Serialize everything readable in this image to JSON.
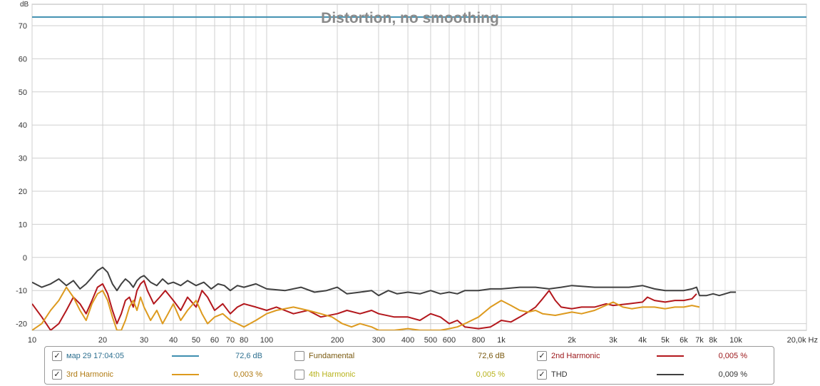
{
  "chart_data": {
    "type": "line",
    "title": "Distortion, no smoothing",
    "ylabel": "dB",
    "xlabel": "Hz",
    "x_scale": "log",
    "xlim": [
      10,
      20000
    ],
    "ylim": [
      -22,
      75
    ],
    "x_ticks": [
      {
        "v": 10,
        "label": "10"
      },
      {
        "v": 20,
        "label": "20"
      },
      {
        "v": 30,
        "label": "30"
      },
      {
        "v": 40,
        "label": "40"
      },
      {
        "v": 50,
        "label": "50"
      },
      {
        "v": 60,
        "label": "60"
      },
      {
        "v": 70,
        "label": "70"
      },
      {
        "v": 80,
        "label": "80"
      },
      {
        "v": 100,
        "label": "100"
      },
      {
        "v": 200,
        "label": "200"
      },
      {
        "v": 300,
        "label": "300"
      },
      {
        "v": 400,
        "label": "400"
      },
      {
        "v": 500,
        "label": "500"
      },
      {
        "v": 600,
        "label": "600"
      },
      {
        "v": 800,
        "label": "800"
      },
      {
        "v": 1000,
        "label": "1k"
      },
      {
        "v": 2000,
        "label": "2k"
      },
      {
        "v": 3000,
        "label": "3k"
      },
      {
        "v": 4000,
        "label": "4k"
      },
      {
        "v": 5000,
        "label": "5k"
      },
      {
        "v": 6000,
        "label": "6k"
      },
      {
        "v": 7000,
        "label": "7k"
      },
      {
        "v": 8000,
        "label": "8k"
      },
      {
        "v": 10000,
        "label": "10k"
      },
      {
        "v": 20000,
        "label": "20,0k Hz"
      }
    ],
    "x_minor": [
      90,
      700,
      900,
      9000
    ],
    "y_ticks": [
      70,
      60,
      50,
      40,
      30,
      20,
      10,
      0,
      -10,
      -20
    ],
    "grid": true,
    "series": [
      {
        "name": "Fundamental",
        "color": "#3f8fb0",
        "points": [
          [
            10,
            72.6
          ],
          [
            20000,
            72.6
          ]
        ]
      },
      {
        "name": "THD",
        "color": "#404040",
        "points": [
          [
            10,
            -7.5
          ],
          [
            11,
            -9
          ],
          [
            12,
            -8
          ],
          [
            13,
            -6.5
          ],
          [
            14,
            -8.5
          ],
          [
            15,
            -7
          ],
          [
            16,
            -9.5
          ],
          [
            17,
            -8
          ],
          [
            18,
            -6
          ],
          [
            19,
            -4
          ],
          [
            20,
            -3
          ],
          [
            21,
            -4.5
          ],
          [
            22,
            -8
          ],
          [
            23,
            -10
          ],
          [
            24,
            -8
          ],
          [
            25,
            -6.5
          ],
          [
            26,
            -7.5
          ],
          [
            27,
            -9
          ],
          [
            28,
            -7
          ],
          [
            29,
            -6
          ],
          [
            30,
            -5.5
          ],
          [
            32,
            -7.5
          ],
          [
            34,
            -8.5
          ],
          [
            36,
            -6.5
          ],
          [
            38,
            -8
          ],
          [
            40,
            -7.5
          ],
          [
            43,
            -8.5
          ],
          [
            46,
            -7
          ],
          [
            50,
            -8.5
          ],
          [
            54,
            -7.5
          ],
          [
            58,
            -9.5
          ],
          [
            62,
            -8
          ],
          [
            66,
            -8.5
          ],
          [
            70,
            -10
          ],
          [
            75,
            -8.5
          ],
          [
            80,
            -9
          ],
          [
            90,
            -8
          ],
          [
            100,
            -9.5
          ],
          [
            120,
            -10
          ],
          [
            140,
            -9
          ],
          [
            160,
            -10.5
          ],
          [
            180,
            -10
          ],
          [
            200,
            -9
          ],
          [
            220,
            -11
          ],
          [
            250,
            -10.5
          ],
          [
            280,
            -10
          ],
          [
            300,
            -11.5
          ],
          [
            330,
            -10
          ],
          [
            360,
            -11
          ],
          [
            400,
            -10.5
          ],
          [
            450,
            -11
          ],
          [
            500,
            -10
          ],
          [
            550,
            -11
          ],
          [
            600,
            -10.5
          ],
          [
            650,
            -11
          ],
          [
            700,
            -10
          ],
          [
            800,
            -10
          ],
          [
            900,
            -9.5
          ],
          [
            1000,
            -9.5
          ],
          [
            1200,
            -9
          ],
          [
            1400,
            -9
          ],
          [
            1600,
            -9.5
          ],
          [
            1800,
            -9
          ],
          [
            2000,
            -8.5
          ],
          [
            2500,
            -9
          ],
          [
            3000,
            -9
          ],
          [
            3500,
            -9
          ],
          [
            4000,
            -8.5
          ],
          [
            4500,
            -9.5
          ],
          [
            5000,
            -10
          ],
          [
            5500,
            -10
          ],
          [
            6000,
            -10
          ],
          [
            6500,
            -9.5
          ],
          [
            6800,
            -9
          ],
          [
            7000,
            -11.5
          ],
          [
            7500,
            -11.5
          ],
          [
            8000,
            -11
          ],
          [
            8500,
            -11.5
          ],
          [
            9000,
            -11
          ],
          [
            9500,
            -10.5
          ],
          [
            10000,
            -10.5
          ]
        ]
      },
      {
        "name": "2nd Harmonic",
        "color": "#b3171c",
        "points": [
          [
            10,
            -14
          ],
          [
            11,
            -18
          ],
          [
            12,
            -22
          ],
          [
            13,
            -20
          ],
          [
            14,
            -16
          ],
          [
            15,
            -12
          ],
          [
            16,
            -14
          ],
          [
            17,
            -17
          ],
          [
            18,
            -13
          ],
          [
            19,
            -9
          ],
          [
            20,
            -8
          ],
          [
            21,
            -11
          ],
          [
            22,
            -16
          ],
          [
            23,
            -20
          ],
          [
            24,
            -17
          ],
          [
            25,
            -13
          ],
          [
            26,
            -12
          ],
          [
            27,
            -15
          ],
          [
            28,
            -10
          ],
          [
            29,
            -8
          ],
          [
            30,
            -7
          ],
          [
            31,
            -10
          ],
          [
            33,
            -14
          ],
          [
            35,
            -12
          ],
          [
            37,
            -10
          ],
          [
            40,
            -13
          ],
          [
            43,
            -16
          ],
          [
            46,
            -12
          ],
          [
            50,
            -15
          ],
          [
            53,
            -10
          ],
          [
            56,
            -12
          ],
          [
            60,
            -16
          ],
          [
            65,
            -14
          ],
          [
            70,
            -17
          ],
          [
            75,
            -15
          ],
          [
            80,
            -14
          ],
          [
            90,
            -15
          ],
          [
            100,
            -16
          ],
          [
            110,
            -15
          ],
          [
            130,
            -17
          ],
          [
            150,
            -16
          ],
          [
            170,
            -18
          ],
          [
            200,
            -17
          ],
          [
            220,
            -16
          ],
          [
            250,
            -17
          ],
          [
            280,
            -16
          ],
          [
            300,
            -17
          ],
          [
            350,
            -18
          ],
          [
            400,
            -18
          ],
          [
            450,
            -19
          ],
          [
            500,
            -17
          ],
          [
            550,
            -18
          ],
          [
            600,
            -20
          ],
          [
            650,
            -19
          ],
          [
            700,
            -21
          ],
          [
            800,
            -21.5
          ],
          [
            900,
            -21
          ],
          [
            950,
            -20
          ],
          [
            1000,
            -19
          ],
          [
            1100,
            -19.5
          ],
          [
            1200,
            -18
          ],
          [
            1300,
            -16.5
          ],
          [
            1400,
            -15
          ],
          [
            1500,
            -12.5
          ],
          [
            1600,
            -10
          ],
          [
            1700,
            -13
          ],
          [
            1800,
            -15
          ],
          [
            2000,
            -15.5
          ],
          [
            2200,
            -15
          ],
          [
            2500,
            -15
          ],
          [
            2800,
            -14
          ],
          [
            3000,
            -14.5
          ],
          [
            3500,
            -14
          ],
          [
            4000,
            -13.5
          ],
          [
            4200,
            -12
          ],
          [
            4500,
            -13
          ],
          [
            5000,
            -13.5
          ],
          [
            5500,
            -13
          ],
          [
            6000,
            -13
          ],
          [
            6500,
            -12.5
          ],
          [
            6800,
            -11
          ]
        ]
      },
      {
        "name": "3rd Harmonic",
        "color": "#dd9a1e",
        "points": [
          [
            10,
            -22
          ],
          [
            11,
            -20
          ],
          [
            12,
            -16
          ],
          [
            13,
            -13
          ],
          [
            14,
            -9
          ],
          [
            15,
            -12
          ],
          [
            16,
            -16
          ],
          [
            17,
            -19
          ],
          [
            18,
            -14
          ],
          [
            19,
            -11
          ],
          [
            20,
            -10
          ],
          [
            21,
            -13
          ],
          [
            22,
            -18
          ],
          [
            23,
            -22
          ],
          [
            24,
            -22
          ],
          [
            25,
            -19
          ],
          [
            26,
            -15
          ],
          [
            27,
            -13
          ],
          [
            28,
            -16
          ],
          [
            29,
            -12
          ],
          [
            30,
            -15
          ],
          [
            32,
            -19
          ],
          [
            34,
            -16
          ],
          [
            36,
            -20
          ],
          [
            38,
            -17
          ],
          [
            40,
            -14
          ],
          [
            43,
            -19
          ],
          [
            46,
            -16
          ],
          [
            50,
            -13
          ],
          [
            53,
            -17
          ],
          [
            56,
            -20
          ],
          [
            60,
            -18
          ],
          [
            65,
            -17
          ],
          [
            70,
            -19
          ],
          [
            75,
            -20
          ],
          [
            80,
            -21
          ],
          [
            90,
            -19
          ],
          [
            100,
            -17
          ],
          [
            110,
            -16
          ],
          [
            130,
            -15
          ],
          [
            150,
            -16
          ],
          [
            170,
            -17
          ],
          [
            190,
            -18
          ],
          [
            210,
            -20
          ],
          [
            230,
            -21
          ],
          [
            250,
            -20
          ],
          [
            280,
            -21
          ],
          [
            300,
            -22
          ],
          [
            350,
            -22
          ],
          [
            400,
            -21.5
          ],
          [
            450,
            -22
          ],
          [
            500,
            -22
          ],
          [
            550,
            -22
          ],
          [
            600,
            -21.5
          ],
          [
            650,
            -21
          ],
          [
            700,
            -20
          ],
          [
            800,
            -18
          ],
          [
            900,
            -15
          ],
          [
            1000,
            -13
          ],
          [
            1100,
            -14.5
          ],
          [
            1200,
            -16
          ],
          [
            1300,
            -16.5
          ],
          [
            1400,
            -16
          ],
          [
            1500,
            -17
          ],
          [
            1700,
            -17.5
          ],
          [
            2000,
            -16.5
          ],
          [
            2200,
            -17
          ],
          [
            2500,
            -16
          ],
          [
            3000,
            -13.5
          ],
          [
            3300,
            -15
          ],
          [
            3600,
            -15.5
          ],
          [
            4000,
            -15
          ],
          [
            4500,
            -15
          ],
          [
            5000,
            -15.5
          ],
          [
            5500,
            -15
          ],
          [
            6000,
            -15
          ],
          [
            6500,
            -14.5
          ],
          [
            7000,
            -15
          ]
        ]
      }
    ],
    "legend": {
      "placement": "bottom",
      "rows": [
        [
          {
            "label": "мар 29 17:04:05",
            "checked": true,
            "color": "#3f8fb0",
            "value": "72,6 dB",
            "text_color": "#2e7090"
          },
          {
            "label": "Fundamental",
            "checked": false,
            "color": "",
            "value": "72,6 dB",
            "text_color": "#7a5a10"
          },
          {
            "label": "2nd Harmonic",
            "checked": true,
            "color": "#b3171c",
            "value": "0,005 %",
            "text_color": "#9a1417"
          }
        ],
        [
          {
            "label": "3rd Harmonic",
            "checked": true,
            "color": "#dd9a1e",
            "value": "0,003 %",
            "text_color": "#b07a12"
          },
          {
            "label": "4th Harmonic",
            "checked": false,
            "color": "",
            "value": "0,005 %",
            "text_color": "#b7b21a"
          },
          {
            "label": "THD",
            "checked": true,
            "color": "#404040",
            "value": "0,009 %",
            "text_color": "#333333"
          }
        ]
      ]
    }
  }
}
